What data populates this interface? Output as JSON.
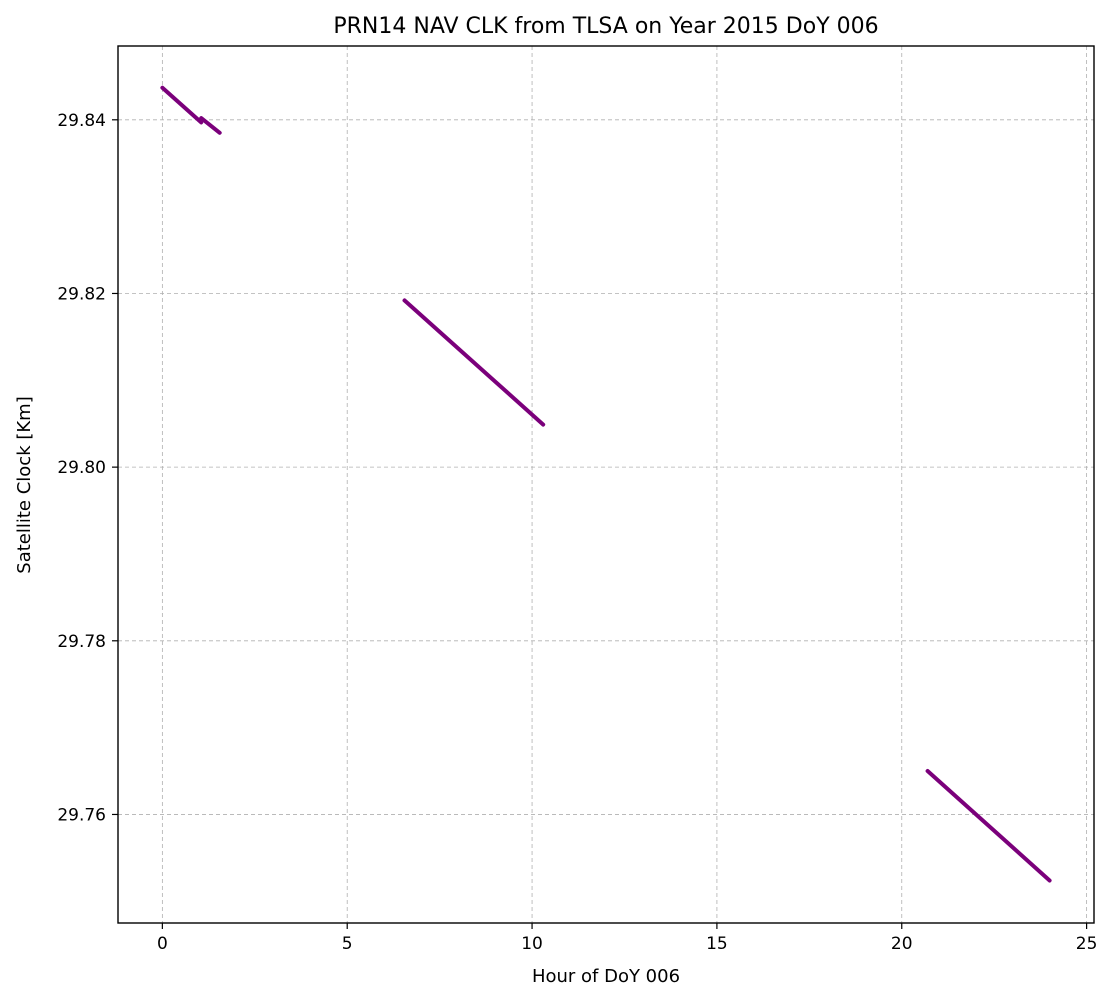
{
  "chart_data": {
    "type": "line",
    "title": "PRN14 NAV CLK from TLSA on Year 2015 DoY 006",
    "xlabel": "Hour of DoY 006",
    "ylabel": "Satellite Clock [Km]",
    "xlim": [
      -1.2,
      25.2
    ],
    "ylim": [
      29.7475,
      29.8485
    ],
    "xticks": [
      0,
      5,
      10,
      15,
      20,
      25
    ],
    "xtick_labels": [
      "0",
      "5",
      "10",
      "15",
      "20",
      "25"
    ],
    "yticks": [
      29.76,
      29.78,
      29.8,
      29.82,
      29.84
    ],
    "ytick_labels": [
      "29.76",
      "29.78",
      "29.80",
      "29.82",
      "29.84"
    ],
    "grid": true,
    "color": "#7b007b",
    "series": [
      {
        "x": [
          0.0,
          1.05
        ],
        "y": [
          29.8437,
          29.8397
        ]
      },
      {
        "x": [
          1.05,
          1.55
        ],
        "y": [
          29.8402,
          29.8385
        ]
      },
      {
        "x": [
          6.55,
          10.3
        ],
        "y": [
          29.8192,
          29.8049
        ]
      },
      {
        "x": [
          20.7,
          24.0
        ],
        "y": [
          29.765,
          29.7524
        ]
      }
    ]
  }
}
